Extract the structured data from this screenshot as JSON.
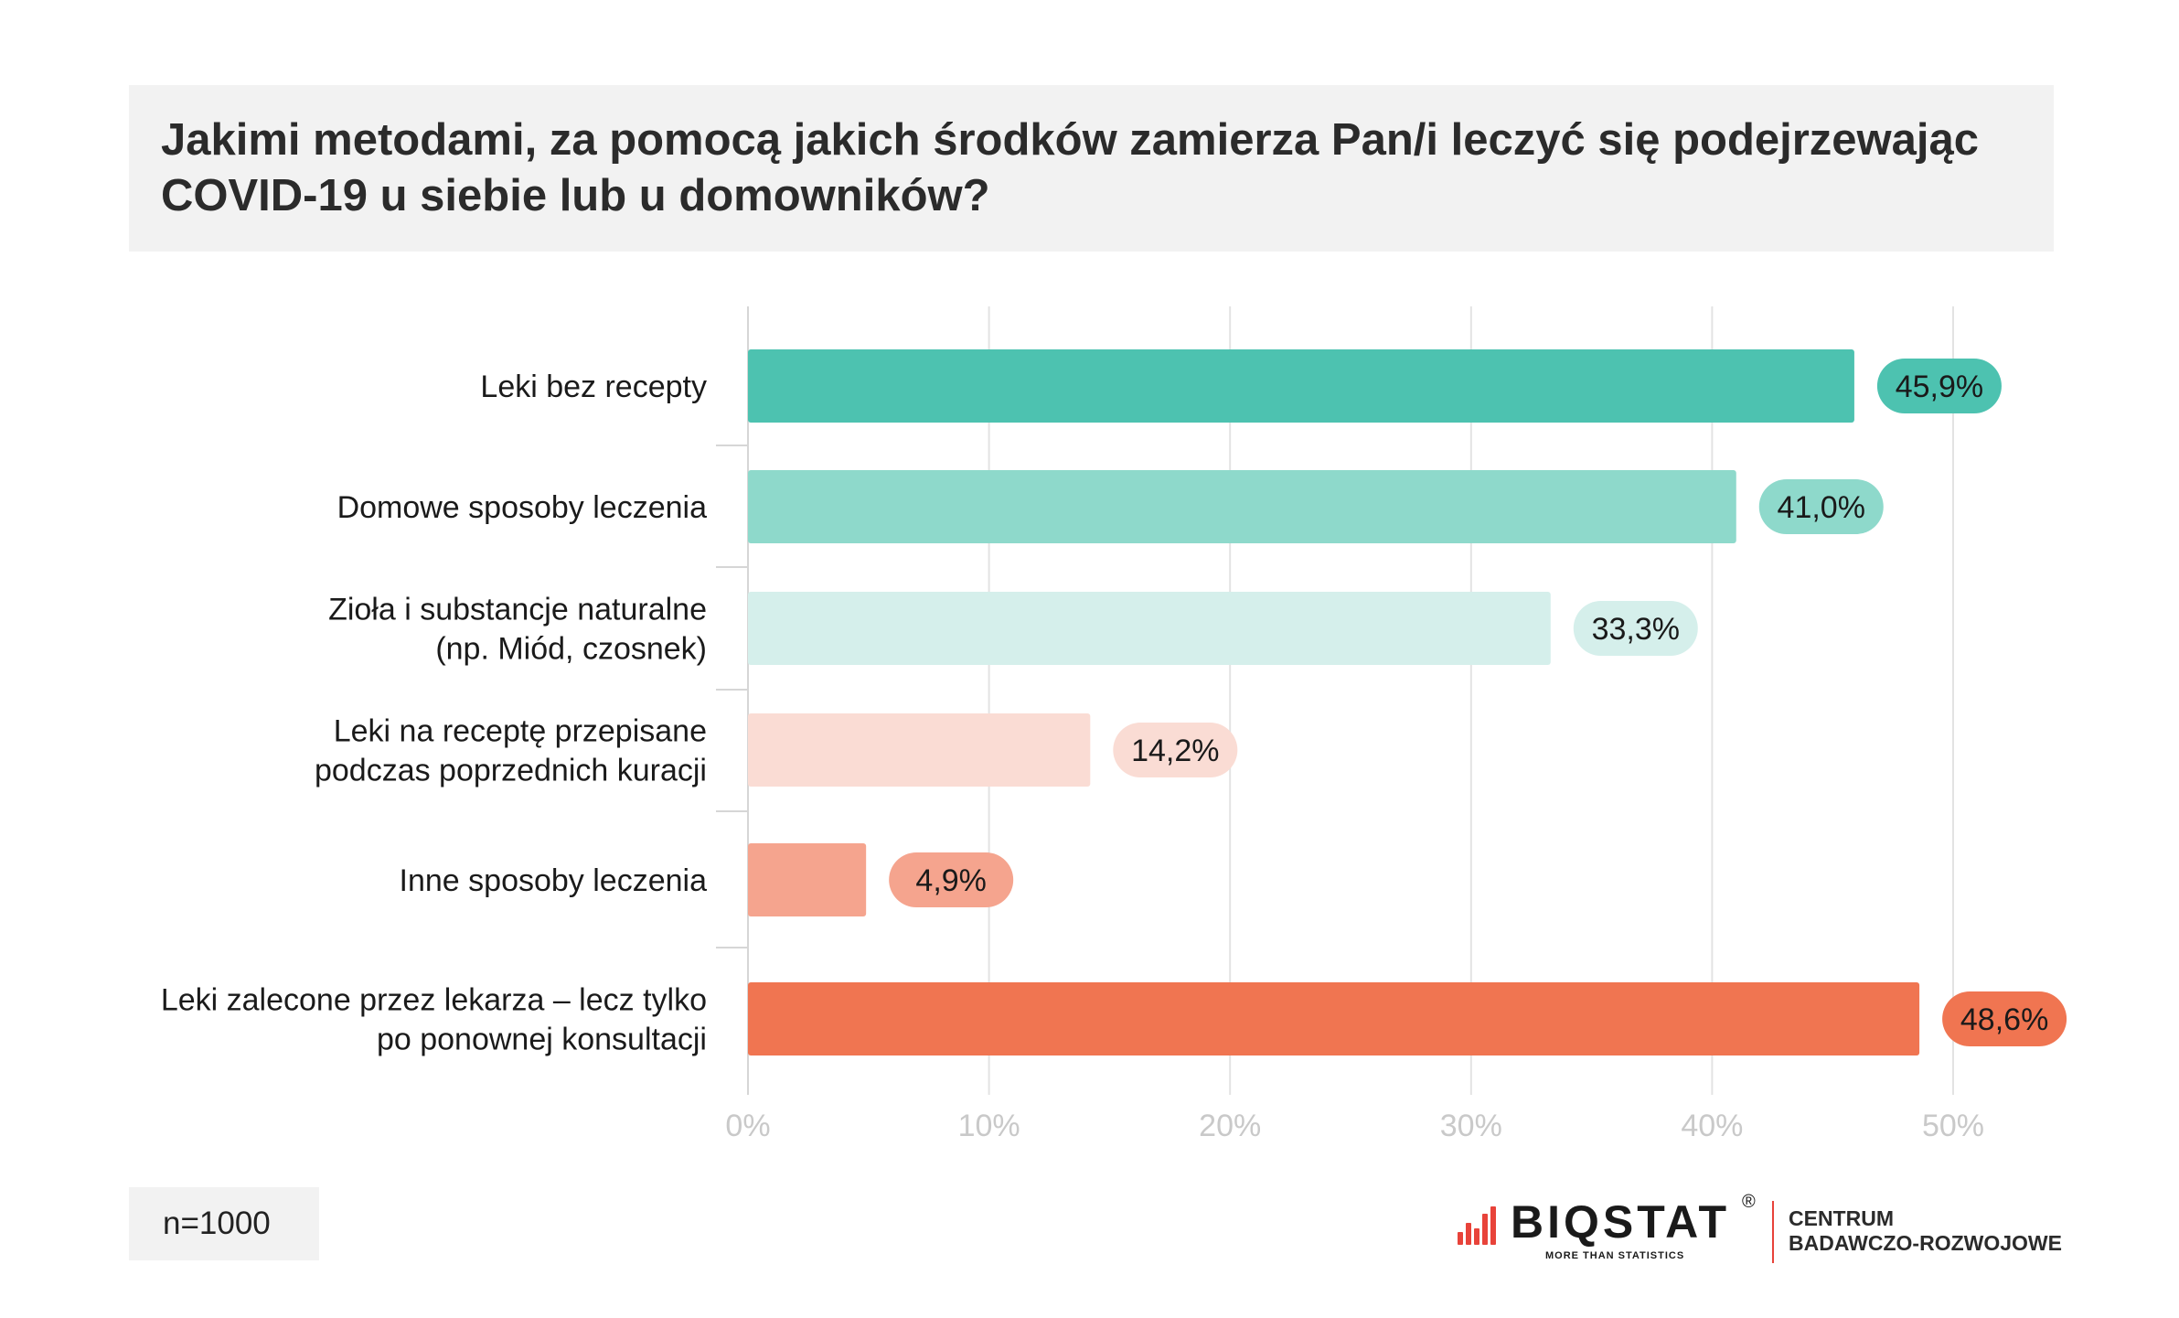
{
  "title": {
    "line1": "Jakimi metodami, za pomocą jakich środków zamierza Pan/i leczyć się podejrzewając",
    "line2": "COVID-19 u siebie lub u domowników?"
  },
  "footnote": "n=1000",
  "logo": {
    "brand": "BIQSTAT",
    "registered": "®",
    "tagline": "MORE THAN STATISTICS",
    "subtitle_line1": "CENTRUM",
    "subtitle_line2": "BADAWCZO-ROZWOJOWE",
    "accent_color": "#e8433a"
  },
  "chart_data": {
    "type": "bar",
    "orientation": "horizontal",
    "categories": [
      [
        "Leki bez recepty"
      ],
      [
        "Domowe sposoby leczenia"
      ],
      [
        "Zioła i substancje naturalne",
        "(np. Miód, czosnek)"
      ],
      [
        "Leki na receptę przepisane",
        "podczas poprzednich kuracji"
      ],
      [
        "Inne sposoby leczenia"
      ],
      [
        "Leki zalecone przez lekarza – lecz tylko",
        "po ponownej konsultacji"
      ]
    ],
    "values": [
      45.9,
      41.0,
      33.3,
      14.2,
      4.9,
      48.6
    ],
    "value_labels": [
      "45,9%",
      "41,0%",
      "33,3%",
      "14,2%",
      "4,9%",
      "48,6%"
    ],
    "bar_colors": [
      "#4dc2b0",
      "#8ed9cb",
      "#d5efeb",
      "#fadcd4",
      "#f5a48e",
      "#f07551"
    ],
    "label_text_colors": [
      "#1a1a1a",
      "#1a1a1a",
      "#1a1a1a",
      "#1a1a1a",
      "#1a1a1a",
      "#1a1a1a"
    ],
    "x_ticks": [
      "0%",
      "10%",
      "20%",
      "30%",
      "40%",
      "50%"
    ],
    "xlim": [
      0,
      50
    ],
    "grid": true,
    "legend": "none"
  }
}
